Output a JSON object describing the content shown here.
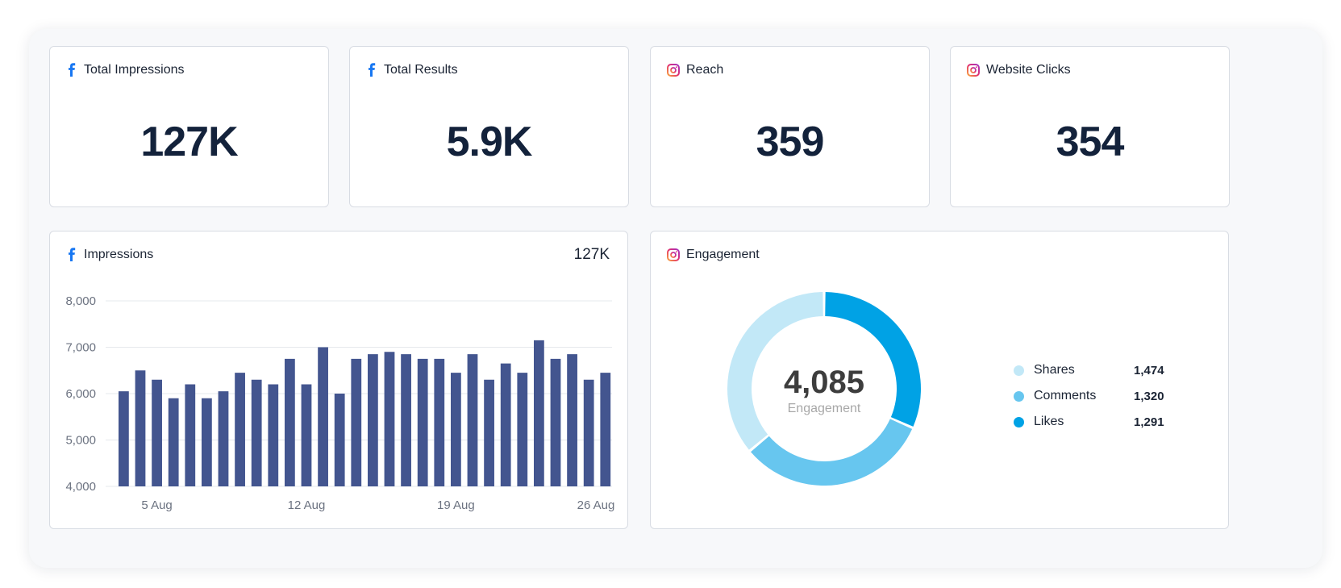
{
  "colors": {
    "facebook": "#1877F2",
    "bar": "#43558f",
    "shares": "#c2e8f7",
    "comments": "#67c6ef",
    "likes": "#00a2e5",
    "kpi_text": "#13223b"
  },
  "kpis": [
    {
      "title": "Total Impressions",
      "value": "127K",
      "icon": "facebook-icon"
    },
    {
      "title": "Total Results",
      "value": "5.9K",
      "icon": "facebook-icon"
    },
    {
      "title": "Reach",
      "value": "359",
      "icon": "instagram-icon"
    },
    {
      "title": "Website Clicks",
      "value": "354",
      "icon": "instagram-icon"
    }
  ],
  "impressions": {
    "title": "Impressions",
    "total": "127K",
    "icon": "facebook-icon"
  },
  "engagement": {
    "title": "Engagement",
    "icon": "instagram-icon",
    "center_value": "4,085",
    "center_label": "Engagement",
    "legend": [
      {
        "label": "Shares",
        "value": "1,474",
        "color": "#c2e8f7"
      },
      {
        "label": "Comments",
        "value": "1,320",
        "color": "#67c6ef"
      },
      {
        "label": "Likes",
        "value": "1,291",
        "color": "#00a2e5"
      }
    ]
  },
  "chart_data": [
    {
      "type": "bar",
      "ylim": [
        4000,
        8000
      ],
      "yticks": [
        4000,
        5000,
        6000,
        7000,
        8000
      ],
      "ytick_labels": [
        "4,000",
        "5,000",
        "6,000",
        "7,000",
        "8,000"
      ],
      "xtick_labels": [
        {
          "index": 2,
          "label": "5 Aug"
        },
        {
          "index": 11,
          "label": "12 Aug"
        },
        {
          "index": 20,
          "label": "19 Aug"
        },
        {
          "index": 29,
          "label": "26 Aug"
        }
      ],
      "grid": true,
      "values": [
        6050,
        6500,
        6300,
        5900,
        6200,
        5900,
        6050,
        6450,
        6300,
        6200,
        6750,
        6200,
        7000,
        6000,
        6750,
        6850,
        6900,
        6850,
        6750,
        6750,
        6450,
        6850,
        6300,
        6650,
        6450,
        7150,
        6750,
        6850,
        6300,
        6450
      ]
    },
    {
      "type": "pie",
      "categories": [
        "Shares",
        "Comments",
        "Likes"
      ],
      "values": [
        1474,
        1320,
        1291
      ],
      "total": 4085
    }
  ]
}
